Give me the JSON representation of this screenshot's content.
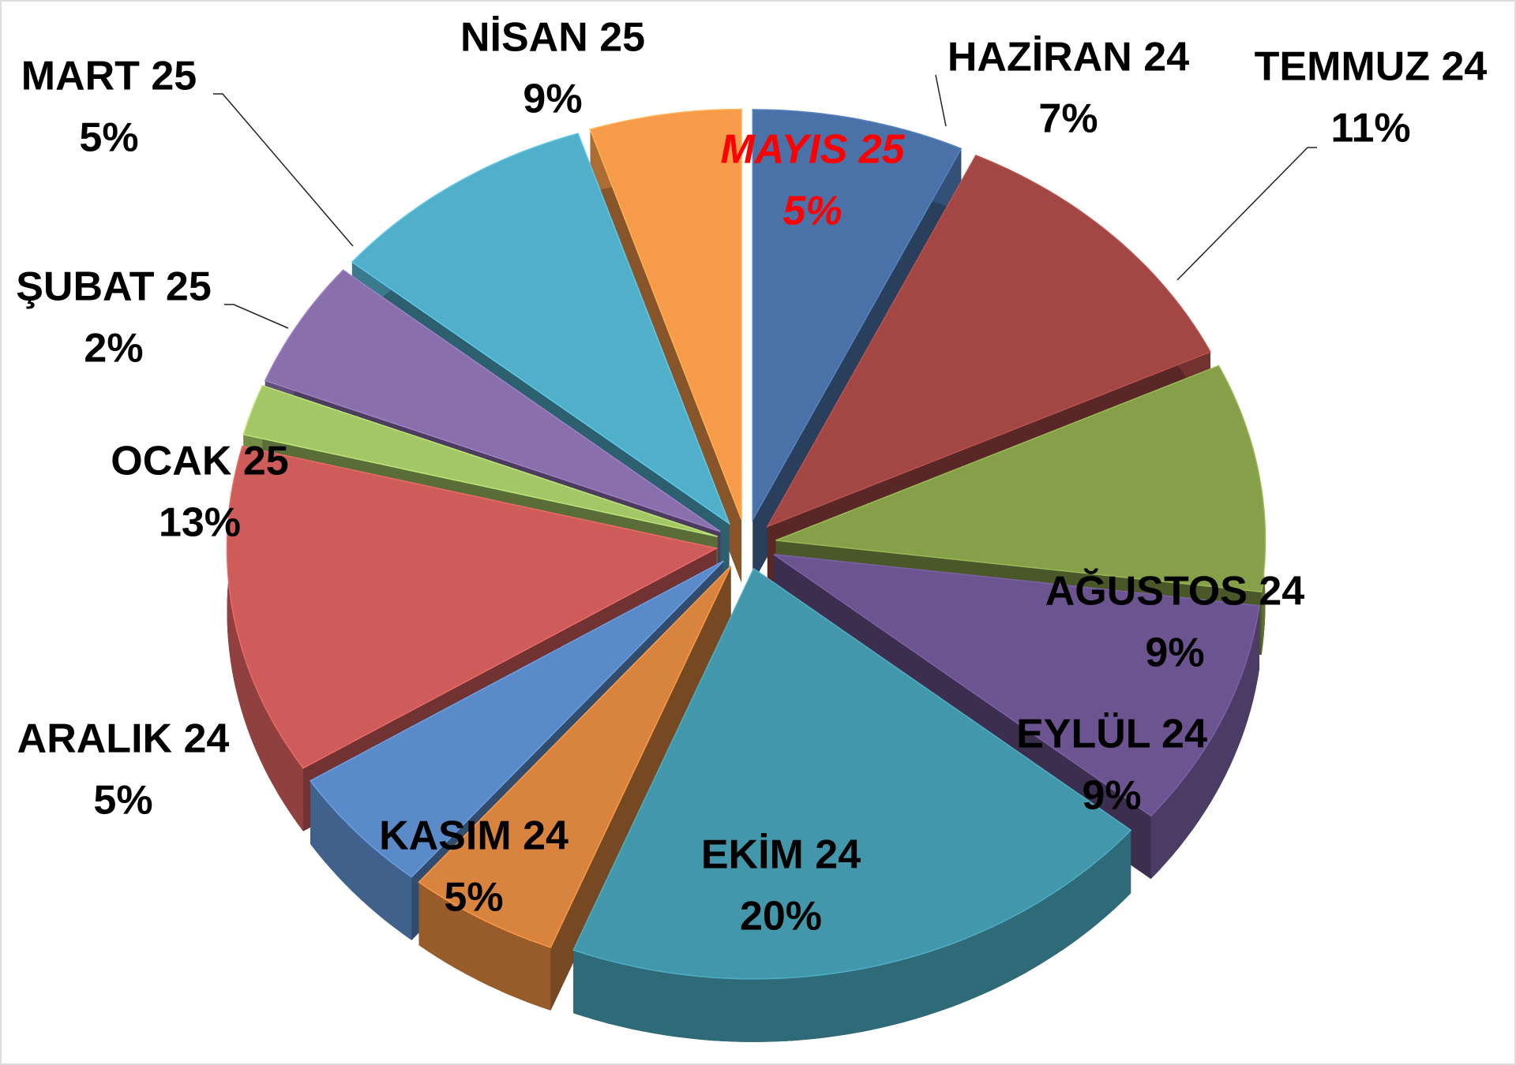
{
  "chart_data": {
    "type": "pie3d",
    "categories": [
      "HAZİRAN 24",
      "TEMMUZ 24",
      "AĞUSTOS 24",
      "EYLÜL 24",
      "EKİM 24",
      "KASIM 24",
      "ARALIK 24",
      "OCAK 25",
      "ŞUBAT 25",
      "MART 25",
      "NİSAN 25",
      "MAYIS 25"
    ],
    "values": [
      7,
      11,
      9,
      9,
      20,
      5,
      5,
      13,
      2,
      5,
      9,
      5
    ],
    "value_labels": [
      "7%",
      "11%",
      "9%",
      "9%",
      "20%",
      "5%",
      "5%",
      "13%",
      "2%",
      "5%",
      "9%",
      "5%"
    ],
    "colors": [
      "#4a72a8",
      "#a24744",
      "#86a04a",
      "#6c5490",
      "#4397ab",
      "#d9843e",
      "#5b8ac8",
      "#cd5c5a",
      "#a3c766",
      "#8a6fad",
      "#52afca",
      "#f59b4a"
    ],
    "label_colors": [
      "#000000",
      "#000000",
      "#000000",
      "#000000",
      "#000000",
      "#000000",
      "#000000",
      "#000000",
      "#000000",
      "#000000",
      "#000000",
      "#ff0000"
    ],
    "label_italic": [
      false,
      false,
      false,
      false,
      false,
      false,
      false,
      false,
      false,
      false,
      false,
      true
    ]
  }
}
